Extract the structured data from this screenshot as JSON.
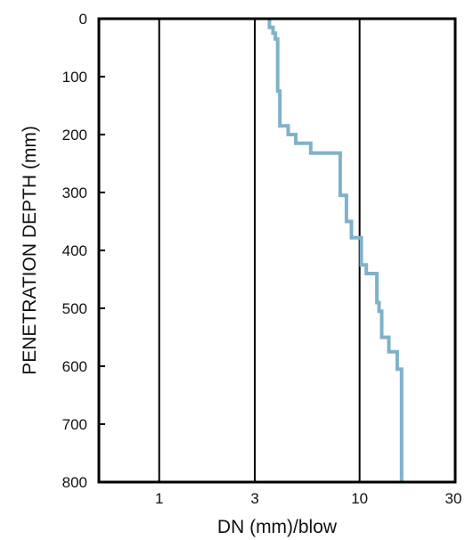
{
  "chart_data": {
    "type": "line",
    "title": "",
    "xlabel": "DN (mm)/blow",
    "ylabel": "PENETRATION DEPTH (mm)",
    "x_scale": "log",
    "xlim": [
      0.5,
      30
    ],
    "ylim": [
      800,
      0
    ],
    "x_ticks": [
      {
        "value": 1,
        "label": "1"
      },
      {
        "value": 3,
        "label": "3"
      },
      {
        "value": 10,
        "label": "10"
      },
      {
        "value": 30,
        "label": "30"
      }
    ],
    "y_ticks": [
      {
        "value": 0,
        "label": "0"
      },
      {
        "value": 100,
        "label": "100"
      },
      {
        "value": 200,
        "label": "200"
      },
      {
        "value": 300,
        "label": "300"
      },
      {
        "value": 400,
        "label": "400"
      },
      {
        "value": 500,
        "label": "500"
      },
      {
        "value": 600,
        "label": "600"
      },
      {
        "value": 700,
        "label": "700"
      },
      {
        "value": 800,
        "label": "800"
      }
    ],
    "grid": {
      "vertical_lines_at": [
        1,
        3,
        10
      ],
      "horizontal": false
    },
    "series": [
      {
        "color": "#7fb2c9",
        "points": [
          {
            "x": 3.55,
            "y": 0
          },
          {
            "x": 3.55,
            "y": 15
          },
          {
            "x": 3.7,
            "y": 15
          },
          {
            "x": 3.7,
            "y": 25
          },
          {
            "x": 3.8,
            "y": 25
          },
          {
            "x": 3.8,
            "y": 35
          },
          {
            "x": 3.9,
            "y": 35
          },
          {
            "x": 3.9,
            "y": 125
          },
          {
            "x": 4.0,
            "y": 125
          },
          {
            "x": 4.0,
            "y": 185
          },
          {
            "x": 4.4,
            "y": 185
          },
          {
            "x": 4.4,
            "y": 200
          },
          {
            "x": 4.8,
            "y": 200
          },
          {
            "x": 4.8,
            "y": 215
          },
          {
            "x": 5.7,
            "y": 215
          },
          {
            "x": 5.7,
            "y": 232
          },
          {
            "x": 8.0,
            "y": 232
          },
          {
            "x": 8.0,
            "y": 305
          },
          {
            "x": 8.6,
            "y": 305
          },
          {
            "x": 8.6,
            "y": 350
          },
          {
            "x": 9.1,
            "y": 350
          },
          {
            "x": 9.1,
            "y": 378
          },
          {
            "x": 10.2,
            "y": 378
          },
          {
            "x": 10.2,
            "y": 425
          },
          {
            "x": 10.8,
            "y": 425
          },
          {
            "x": 10.8,
            "y": 440
          },
          {
            "x": 12.2,
            "y": 440
          },
          {
            "x": 12.2,
            "y": 490
          },
          {
            "x": 12.5,
            "y": 490
          },
          {
            "x": 12.5,
            "y": 505
          },
          {
            "x": 12.9,
            "y": 505
          },
          {
            "x": 12.9,
            "y": 550
          },
          {
            "x": 14.0,
            "y": 550
          },
          {
            "x": 14.0,
            "y": 575
          },
          {
            "x": 15.4,
            "y": 575
          },
          {
            "x": 15.4,
            "y": 605
          },
          {
            "x": 16.2,
            "y": 605
          },
          {
            "x": 16.2,
            "y": 800
          }
        ]
      }
    ]
  }
}
